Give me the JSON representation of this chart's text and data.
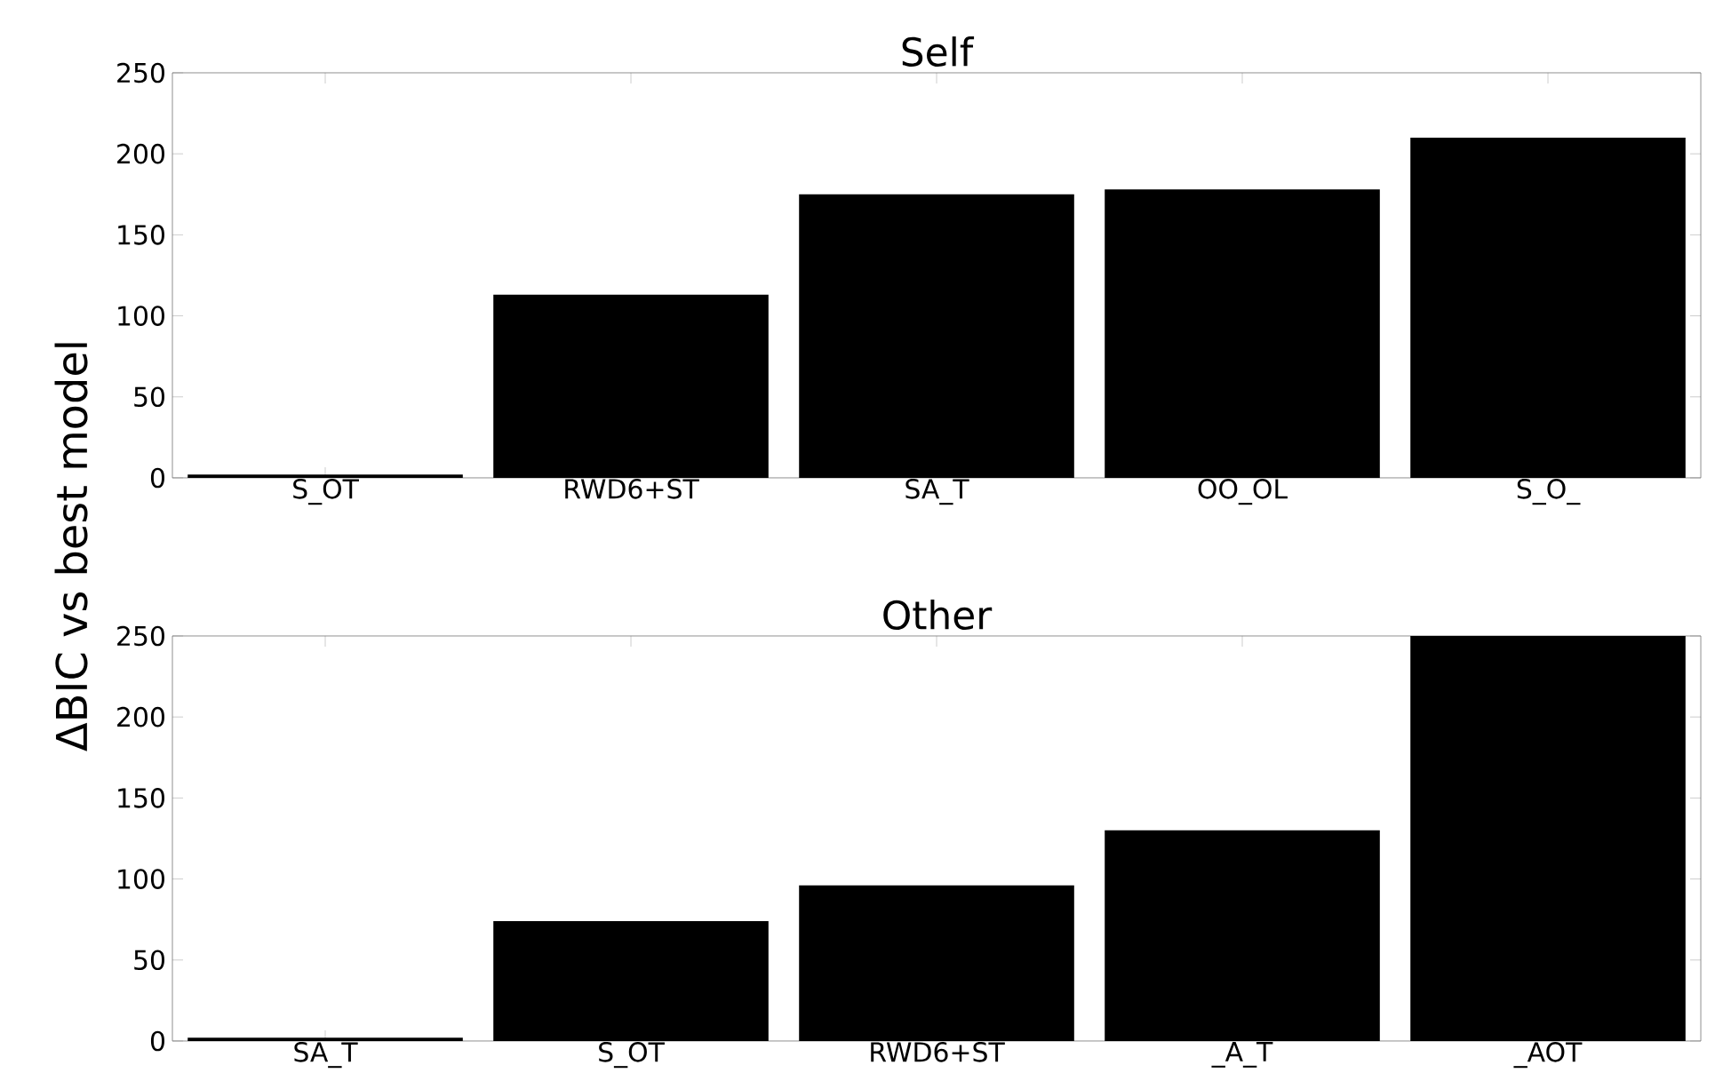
{
  "chart_data": [
    {
      "type": "bar",
      "title": "Self",
      "ylabel": "ΔBIC vs best model",
      "categories": [
        "S_OT",
        "RWD6+ST",
        "SA_T",
        "OO_OL",
        "S_O_"
      ],
      "values": [
        2,
        113,
        175,
        178,
        210
      ],
      "color": "#000000",
      "ylim": [
        0,
        250
      ],
      "yticks": [
        0,
        50,
        100,
        150,
        200,
        250
      ]
    },
    {
      "type": "bar",
      "title": "Other",
      "categories": [
        "SA_T",
        "S_OT",
        "RWD6+ST",
        "_A_T",
        "_AOT"
      ],
      "values": [
        2,
        74,
        96,
        130,
        250
      ],
      "color": "#000000",
      "ylim": [
        0,
        250
      ],
      "yticks": [
        0,
        50,
        100,
        150,
        200,
        250
      ]
    }
  ]
}
